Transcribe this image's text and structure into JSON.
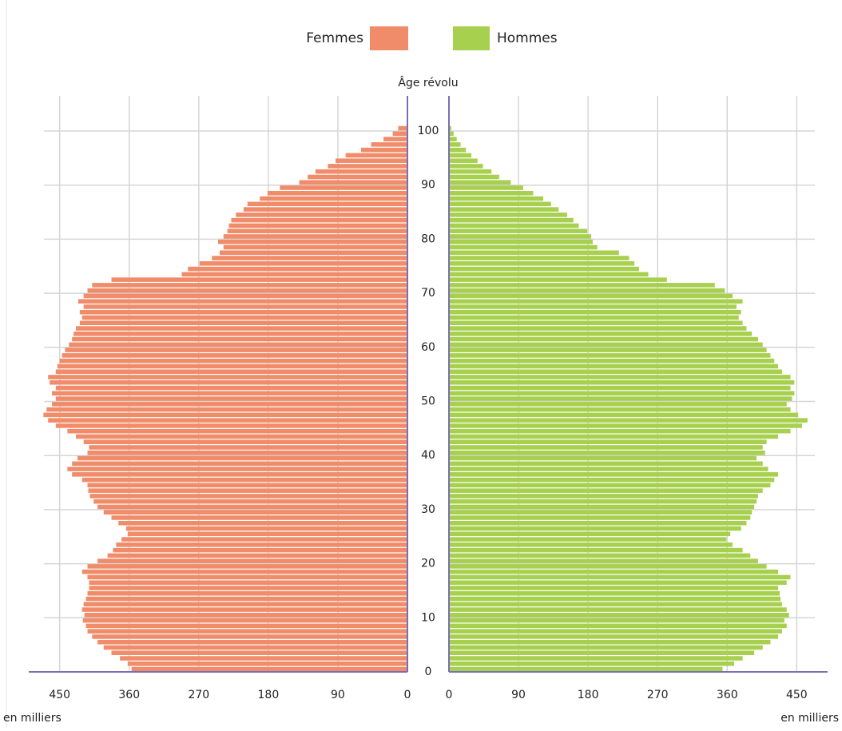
{
  "chart_data": {
    "type": "pyramid",
    "legend": {
      "position": "top"
    },
    "age_axis_label": "Âge révolu",
    "value_unit_label": "en milliers",
    "ages": [
      0,
      1,
      2,
      3,
      4,
      5,
      6,
      7,
      8,
      9,
      10,
      11,
      12,
      13,
      14,
      15,
      16,
      17,
      18,
      19,
      20,
      21,
      22,
      23,
      24,
      25,
      26,
      27,
      28,
      29,
      30,
      31,
      32,
      33,
      34,
      35,
      36,
      37,
      38,
      39,
      40,
      41,
      42,
      43,
      44,
      45,
      46,
      47,
      48,
      49,
      50,
      51,
      52,
      53,
      54,
      55,
      56,
      57,
      58,
      59,
      60,
      61,
      62,
      63,
      64,
      65,
      66,
      67,
      68,
      69,
      70,
      71,
      72,
      73,
      74,
      75,
      76,
      77,
      78,
      79,
      80,
      81,
      82,
      83,
      84,
      85,
      86,
      87,
      88,
      89,
      90,
      91,
      92,
      93,
      94,
      95,
      96,
      97,
      98,
      99,
      100
    ],
    "ylim": [
      0,
      106.5
    ],
    "yticks": [
      0,
      10,
      20,
      30,
      40,
      50,
      60,
      70,
      80,
      90,
      100
    ],
    "xlim": [
      0,
      490
    ],
    "xticks": [
      0,
      90,
      180,
      270,
      360,
      450
    ],
    "grid": true,
    "series": [
      {
        "name": "Femmes",
        "side": "left",
        "color": "#f08c6a",
        "values": [
          357,
          362,
          372,
          383,
          393,
          401,
          408,
          414,
          416,
          420,
          418,
          421,
          419,
          416,
          414,
          412,
          412,
          414,
          421,
          414,
          401,
          388,
          381,
          377,
          370,
          362,
          364,
          374,
          383,
          393,
          401,
          406,
          411,
          413,
          414,
          421,
          434,
          440,
          434,
          427,
          414,
          412,
          419,
          429,
          440,
          455,
          465,
          471,
          467,
          460,
          455,
          460,
          455,
          463,
          465,
          455,
          453,
          450,
          447,
          443,
          438,
          434,
          432,
          429,
          424,
          421,
          424,
          419,
          426,
          419,
          414,
          408,
          383,
          292,
          284,
          269,
          253,
          243,
          238,
          245,
          238,
          233,
          231,
          228,
          222,
          212,
          207,
          191,
          181,
          165,
          140,
          129,
          119,
          103,
          93,
          80,
          60,
          47,
          31,
          19,
          12
        ]
      },
      {
        "name": "Hommes",
        "side": "right",
        "color": "#a8d04f",
        "values": [
          354,
          369,
          380,
          395,
          406,
          416,
          426,
          431,
          437,
          434,
          440,
          437,
          431,
          429,
          428,
          426,
          437,
          442,
          426,
          411,
          400,
          390,
          380,
          367,
          359,
          364,
          378,
          385,
          390,
          392,
          395,
          398,
          400,
          406,
          416,
          421,
          426,
          413,
          406,
          398,
          409,
          406,
          411,
          426,
          442,
          457,
          464,
          452,
          442,
          437,
          444,
          447,
          442,
          447,
          442,
          431,
          426,
          421,
          416,
          411,
          406,
          400,
          392,
          385,
          380,
          375,
          378,
          372,
          380,
          367,
          357,
          344,
          282,
          258,
          246,
          240,
          233,
          220,
          192,
          186,
          184,
          179,
          168,
          161,
          153,
          142,
          132,
          122,
          109,
          96,
          80,
          65,
          55,
          44,
          37,
          29,
          22,
          15,
          10,
          6,
          3
        ]
      }
    ]
  }
}
